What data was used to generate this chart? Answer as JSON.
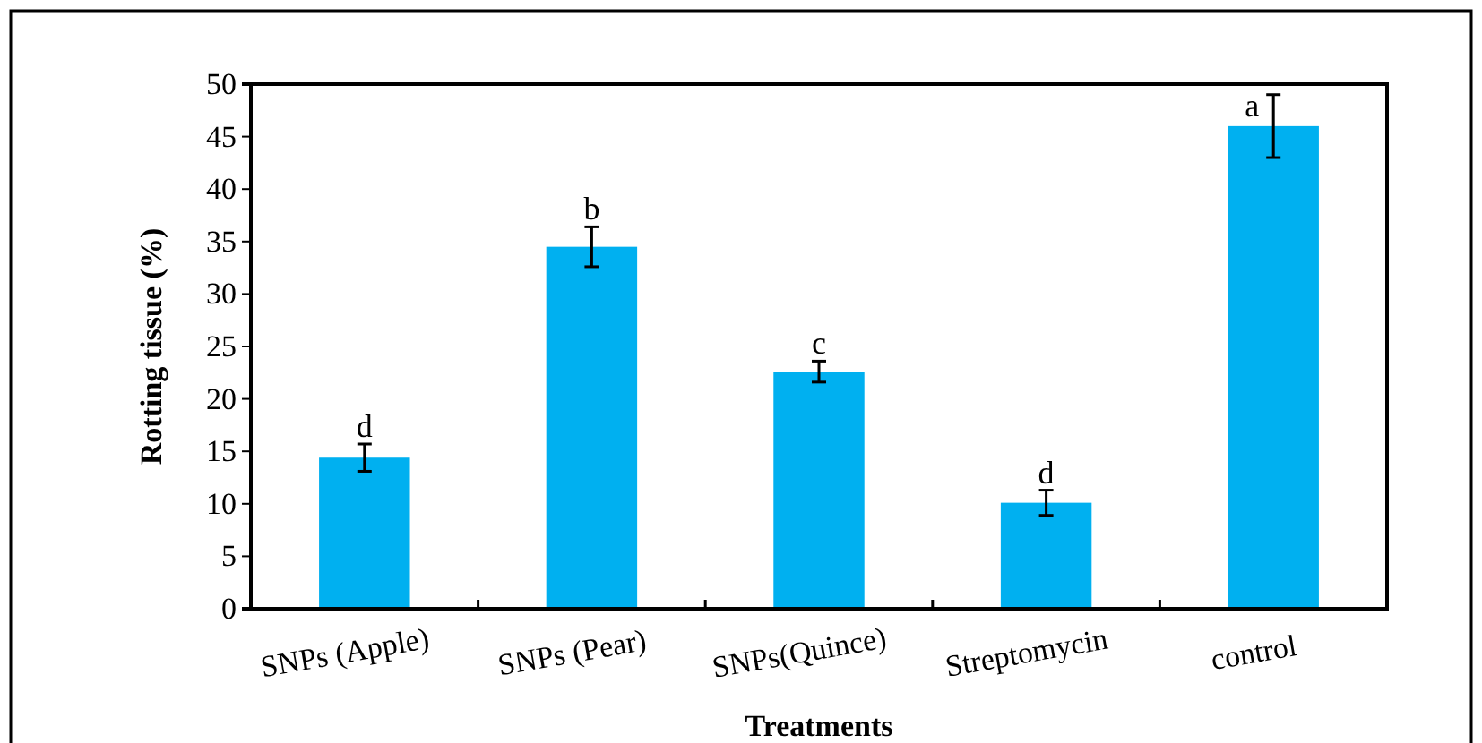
{
  "chart_data": {
    "type": "bar",
    "xlabel": "Treatments",
    "ylabel": "Rotting tissue (%)",
    "categories": [
      "SNPs (Apple)",
      "SNPs (Pear)",
      "SNPs(Quince)",
      "Streptomycin",
      "control"
    ],
    "values": [
      14.4,
      34.5,
      22.6,
      10.1,
      46.0
    ],
    "errors": [
      1.3,
      1.9,
      1.0,
      1.2,
      3.0
    ],
    "color": "#00b0f0",
    "ylim": [
      0,
      50
    ],
    "yticks": [
      0,
      5,
      10,
      15,
      20,
      25,
      30,
      35,
      40,
      45,
      50
    ],
    "grid": false,
    "annotations": [
      {
        "text": "d",
        "x": "SNPs (Apple)",
        "y": 14.4
      },
      {
        "text": "b",
        "x": "SNPs (Pear)",
        "y": 34.5
      },
      {
        "text": "c",
        "x": "SNPs(Quince)",
        "y": 22.6
      },
      {
        "text": "d",
        "x": "Streptomycin",
        "y": 10.1
      },
      {
        "text": "a",
        "x": "control",
        "y": 46.0
      }
    ]
  }
}
